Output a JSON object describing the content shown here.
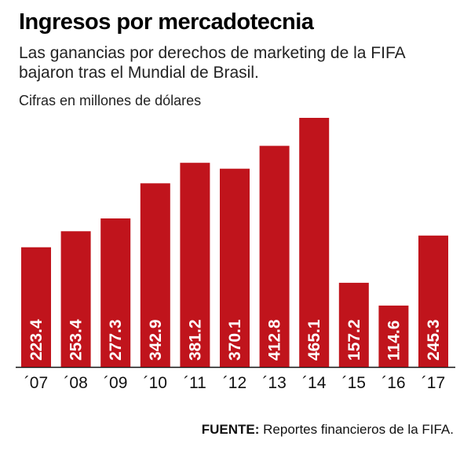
{
  "header": {
    "title": "Ingresos por mercadotecnia",
    "subtitle": "Las ganancias por derechos de marketing de la FIFA bajaron tras el Mundial de Brasil.",
    "units": "Cifras en millones de dólares"
  },
  "footer": {
    "source_label": "FUENTE:",
    "source_text": "Reportes financieros de la FIFA."
  },
  "colors": {
    "bar": "#c0141c",
    "label": "#ffffff"
  },
  "chart_data": {
    "type": "bar",
    "title": "Ingresos por mercadotecnia",
    "subtitle": "Las ganancias por derechos de marketing de la FIFA bajaron tras el Mundial de Brasil.",
    "ylabel": "Cifras en millones de dólares",
    "xlabel": "",
    "categories": [
      "´07",
      "´08",
      "´09",
      "´10",
      "´11",
      "´12",
      "´13",
      "´14",
      "´15",
      "´16",
      "´17"
    ],
    "values": [
      223.4,
      253.4,
      277.3,
      342.9,
      381.2,
      370.1,
      412.8,
      465.1,
      157.2,
      114.6,
      245.3
    ],
    "value_labels": [
      "223.4",
      "253.4",
      "277.3",
      "342.9",
      "381.2",
      "370.1",
      "412.8",
      "465.1",
      "157.2",
      "114.6",
      "245.3"
    ],
    "ylim": [
      0,
      465.1
    ],
    "grid": false,
    "legend": "none"
  }
}
